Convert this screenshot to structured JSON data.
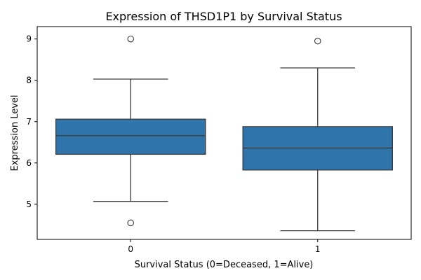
{
  "chart_data": {
    "type": "box",
    "title": "Expression of THSD1P1 by Survival Status",
    "xlabel": "Survival Status (0=Deceased, 1=Alive)",
    "ylabel": "Expression Level",
    "ylim": [
      4.15,
      9.3
    ],
    "yticks": [
      "5",
      "6",
      "7",
      "8",
      "9"
    ],
    "grid": false,
    "box_color": "#2f75ab",
    "line_color": "#3a3a3a",
    "categories": [
      "0",
      "1"
    ],
    "boxes": [
      {
        "category": "0",
        "whisker_low": 5.07,
        "q1": 6.21,
        "median": 6.66,
        "q3": 7.06,
        "whisker_high": 8.03,
        "outliers": [
          9.0,
          4.55
        ]
      },
      {
        "category": "1",
        "whisker_low": 4.36,
        "q1": 5.83,
        "median": 6.36,
        "q3": 6.88,
        "whisker_high": 8.3,
        "outliers": [
          8.95
        ]
      }
    ]
  }
}
